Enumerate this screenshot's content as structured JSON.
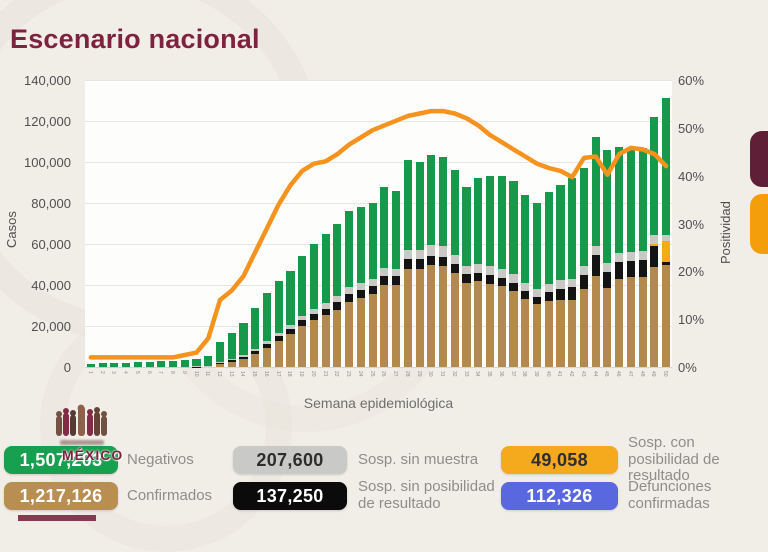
{
  "title": "Escenario nacional",
  "colors": {
    "title_maroon": "#7E2240",
    "bar_confirmados": "#B3894E",
    "bar_sosp_sin_posibilidad": "#141414",
    "bar_sosp_con_posibilidad": "#F3AC13",
    "bar_sosp_sin_muestra": "#C9C8C4",
    "bar_negativos": "#17994C",
    "line_positividad": "#F6921E",
    "pill_negativos": "#17A04F",
    "pill_confirmados": "#B98E52",
    "pill_sosp_sin_muestra": "#C9C9C7",
    "pill_sosp_sin_posibilidad": "#0B0B0B",
    "pill_sosp_con_posibilidad": "#F5A91D",
    "pill_defunciones": "#5A68E0",
    "legend_chip_top": "#5F2037",
    "legend_chip_bottom": "#F59E0B"
  },
  "chart_data": {
    "type": "bar",
    "stacked": true,
    "title": "Escenario nacional",
    "xlabel": "Semana epidemiológica",
    "ylabel_left": "Casos",
    "ylabel_right": "Positividad",
    "grid": true,
    "x": [
      1,
      2,
      3,
      4,
      5,
      6,
      7,
      8,
      9,
      10,
      11,
      12,
      13,
      14,
      15,
      16,
      17,
      18,
      19,
      20,
      21,
      22,
      23,
      24,
      25,
      26,
      27,
      28,
      29,
      30,
      31,
      32,
      33,
      34,
      35,
      36,
      37,
      38,
      39,
      40,
      41,
      42,
      43,
      44,
      45,
      46,
      47,
      48,
      49,
      50
    ],
    "ylim_left": [
      0,
      140000
    ],
    "yticks_left": [
      "140,000",
      "120,000",
      "100,000",
      "80,000",
      "60,000",
      "40,000",
      "20,000",
      "0"
    ],
    "ylim_right_percent": [
      0,
      60
    ],
    "yticks_right": [
      "60%",
      "50%",
      "40%",
      "30%",
      "20%",
      "10%",
      "0%"
    ],
    "values_note": "weekly case counts estimated from bar heights",
    "series": [
      {
        "key": "confirmados",
        "name": "Confirmados",
        "values": [
          100,
          100,
          100,
          100,
          100,
          100,
          100,
          100,
          100,
          200,
          300,
          1500,
          2400,
          3700,
          6300,
          9400,
          12900,
          16100,
          20000,
          23000,
          25200,
          28000,
          31800,
          33700,
          35600,
          40000,
          39900,
          47700,
          47700,
          49800,
          49300,
          45800,
          41200,
          41800,
          40600,
          39300,
          37100,
          33300,
          30600,
          32000,
          32800,
          32900,
          38100,
          44400,
          38400,
          43100,
          43700,
          43800,
          48900,
          50000
        ]
      },
      {
        "key": "sosp_sin_posibilidad",
        "name": "Sosp. sin posibilidad de resultado",
        "values": [
          50,
          50,
          50,
          50,
          50,
          50,
          50,
          50,
          50,
          50,
          100,
          600,
          800,
          1100,
          1500,
          1800,
          2100,
          2400,
          2700,
          3000,
          3300,
          3500,
          3800,
          3900,
          4000,
          4400,
          4300,
          5000,
          5000,
          4500,
          4500,
          4300,
          4000,
          4100,
          4200,
          4200,
          4100,
          3800,
          3600,
          4500,
          5500,
          6000,
          7000,
          10000,
          8000,
          8000,
          8000,
          8500,
          10000,
          1000
        ]
      },
      {
        "key": "sosp_con_posibilidad",
        "name": "Sosp. con posibilidad de resultado",
        "values": [
          0,
          0,
          0,
          0,
          0,
          0,
          0,
          0,
          0,
          0,
          0,
          0,
          0,
          0,
          0,
          0,
          0,
          0,
          0,
          0,
          0,
          0,
          0,
          0,
          0,
          0,
          0,
          0,
          0,
          0,
          0,
          0,
          0,
          0,
          0,
          0,
          0,
          0,
          0,
          0,
          0,
          0,
          0,
          0,
          0,
          0,
          0,
          0,
          1000,
          10500
        ]
      },
      {
        "key": "sosp_sin_muestra",
        "name": "Sosp. sin muestra",
        "values": [
          50,
          50,
          50,
          50,
          50,
          50,
          50,
          50,
          50,
          50,
          100,
          500,
          700,
          900,
          1200,
          1500,
          1800,
          2000,
          2300,
          2500,
          2700,
          3000,
          3200,
          3300,
          3400,
          3700,
          3600,
          4300,
          4200,
          5000,
          5000,
          4500,
          4000,
          4200,
          4300,
          4300,
          4200,
          3900,
          3700,
          3900,
          4000,
          4200,
          4400,
          4500,
          4400,
          4500,
          4400,
          4500,
          4500,
          3000
        ]
      },
      {
        "key": "negativos",
        "name": "Negativos",
        "values": [
          1300,
          1600,
          1800,
          2000,
          2200,
          2400,
          2600,
          2800,
          3000,
          3700,
          5000,
          9400,
          12600,
          15800,
          20000,
          23300,
          25200,
          26500,
          29000,
          31500,
          33800,
          35500,
          37200,
          37100,
          37000,
          39900,
          38200,
          44000,
          43100,
          44200,
          43700,
          41400,
          38800,
          41900,
          43900,
          45200,
          45100,
          43000,
          42100,
          45100,
          46700,
          48900,
          47500,
          53100,
          55200,
          51900,
          49900,
          50200,
          57600,
          66500
        ]
      }
    ],
    "line_series": {
      "name": "Positividad (%)",
      "axis": "right",
      "values": [
        2,
        2,
        2,
        2,
        2,
        2,
        2,
        2,
        2.5,
        3,
        6,
        14,
        16,
        19,
        24,
        29,
        34,
        38,
        41,
        42.5,
        43,
        44.5,
        46.5,
        48,
        49.5,
        50.5,
        51.5,
        52.5,
        53,
        53.5,
        53.5,
        53,
        52,
        50.5,
        48.5,
        47,
        45.5,
        44,
        42.5,
        41.6,
        41,
        39.7,
        43.7,
        44,
        40.2,
        44.5,
        45.8,
        45.5,
        44.5,
        42
      ]
    }
  },
  "stats": {
    "negativos": {
      "value": "1,507,203",
      "label": "Negativos"
    },
    "confirmados": {
      "value": "1,217,126",
      "label": "Confirmados"
    },
    "sosp_sin_muestra": {
      "value": "207,600",
      "label": "Sosp. sin muestra"
    },
    "sosp_sin_posibilidad": {
      "value": "137,250",
      "label": "Sosp. sin posibilidad de resultado"
    },
    "sosp_con_posibilidad": {
      "value": "49,058",
      "label": "Sosp. con posibilidad de resultado"
    },
    "defunciones": {
      "value": "112,326",
      "label": "Defunciones confirmadas"
    }
  },
  "watermark": {
    "mexico": "MÉXICO"
  }
}
